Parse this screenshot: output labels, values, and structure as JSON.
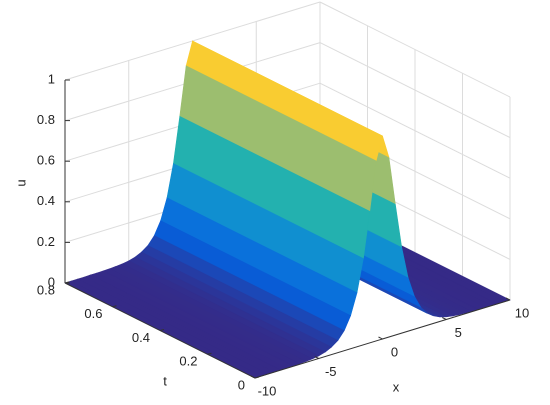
{
  "chart_data": {
    "type": "surface",
    "colormap": "parula",
    "xlabel": "x",
    "tlabel": "t",
    "ulabel": "u",
    "x": [
      -10,
      -9.5,
      -9,
      -8.5,
      -8,
      -7.5,
      -7,
      -6.5,
      -6,
      -5.5,
      -5,
      -4.5,
      -4,
      -3.5,
      -3,
      -2.5,
      -2,
      -1.5,
      -1,
      -0.5,
      0,
      0.5,
      1,
      1.5,
      2,
      2.5,
      3,
      3.5,
      4,
      4.5,
      5,
      5.5,
      6,
      6.5,
      7,
      7.5,
      8,
      8.5,
      9,
      9.5,
      10
    ],
    "values": [
      0,
      0,
      0,
      0,
      0.001,
      0.001,
      0.002,
      0.003,
      0.005,
      0.008,
      0.013,
      0.022,
      0.037,
      0.06,
      0.099,
      0.163,
      0.266,
      0.425,
      0.648,
      0.887,
      1,
      0.887,
      0.648,
      0.425,
      0.266,
      0.163,
      0.099,
      0.06,
      0.037,
      0.022,
      0.013,
      0.008,
      0.005,
      0.003,
      0.002,
      0.001,
      0.001,
      0,
      0,
      0,
      0
    ],
    "xlim": [
      -10,
      10
    ],
    "xticks": [
      -10,
      -5,
      0,
      5,
      10
    ],
    "tlim": [
      0,
      0.8
    ],
    "tticks": [
      0,
      0.2,
      0.4,
      0.6,
      0.8
    ],
    "ulim": [
      0,
      1
    ],
    "uticks": [
      0,
      0.2,
      0.4,
      0.6,
      0.8,
      1
    ],
    "grid": true
  }
}
